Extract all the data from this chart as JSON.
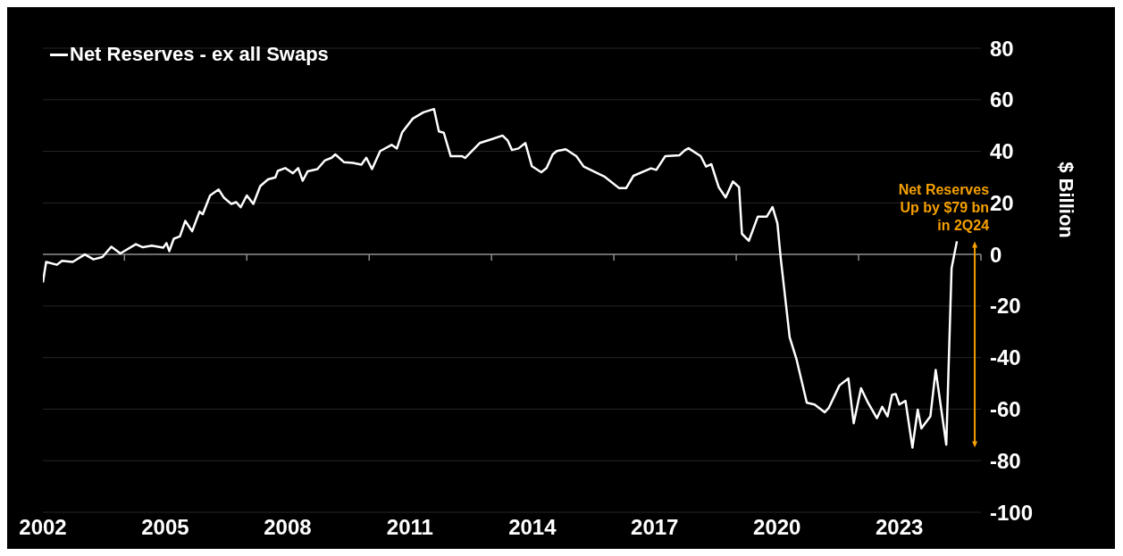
{
  "chart_data": {
    "type": "line",
    "ylabel": "$ Billion",
    "x": [
      2002.0,
      2002.08,
      2002.34,
      2002.47,
      2002.73,
      2003.03,
      2003.24,
      2003.46,
      2003.68,
      2003.9,
      2004.28,
      2004.45,
      2004.67,
      2004.95,
      2005.03,
      2005.1,
      2005.21,
      2005.36,
      2005.49,
      2005.66,
      2005.84,
      2005.92,
      2006.1,
      2006.31,
      2006.44,
      2006.62,
      2006.74,
      2006.85,
      2007.0,
      2007.16,
      2007.33,
      2007.52,
      2007.7,
      2007.76,
      2007.94,
      2008.13,
      2008.26,
      2008.37,
      2008.49,
      2008.73,
      2008.91,
      2009.08,
      2009.17,
      2009.38,
      2009.6,
      2009.81,
      2009.93,
      2010.07,
      2010.27,
      2010.55,
      2010.68,
      2010.81,
      2011.07,
      2011.33,
      2011.59,
      2011.71,
      2011.83,
      2012.0,
      2012.28,
      2012.35,
      2012.71,
      2013.02,
      2013.27,
      2013.4,
      2013.5,
      2013.66,
      2013.83,
      2013.99,
      2014.22,
      2014.35,
      2014.5,
      2014.6,
      2014.82,
      2015.08,
      2015.26,
      2015.78,
      2016.13,
      2016.3,
      2016.48,
      2016.91,
      2017.04,
      2017.26,
      2017.61,
      2017.74,
      2017.83,
      2018.13,
      2018.26,
      2018.39,
      2018.57,
      2018.74,
      2018.92,
      2019.07,
      2019.14,
      2019.31,
      2019.53,
      2019.75,
      2019.89,
      2020.01,
      2020.09,
      2020.31,
      2020.48,
      2020.73,
      2020.92,
      2021.17,
      2021.27,
      2021.53,
      2021.75,
      2021.88,
      2022.06,
      2022.23,
      2022.45,
      2022.58,
      2022.71,
      2022.82,
      2022.91,
      2023.0,
      2023.15,
      2023.32,
      2023.45,
      2023.54,
      2023.76,
      2023.89,
      2024.15,
      2024.28,
      2024.41
    ],
    "series": [
      {
        "name": "Net Reserves - ex all Swaps",
        "color": "#ffffff",
        "values": [
          -10.9,
          -2.9,
          -4,
          -2.5,
          -2.9,
          0,
          -1.9,
          -1,
          3,
          0.4,
          4,
          2.8,
          3.4,
          2.6,
          4.4,
          1.3,
          6.1,
          7,
          13,
          9,
          16.6,
          15.6,
          22.9,
          25.2,
          22,
          19.6,
          20.3,
          18.3,
          22.9,
          19.6,
          26.5,
          29.1,
          29.9,
          32.4,
          33.5,
          31.5,
          33.5,
          28.6,
          32.2,
          33.1,
          36.4,
          37.5,
          38.8,
          35.8,
          35.5,
          34.8,
          37.5,
          33.1,
          40.1,
          42.5,
          41.1,
          47.4,
          52.7,
          55.1,
          56.4,
          47.7,
          47.2,
          38.1,
          38.1,
          37.4,
          43.2,
          44.8,
          46.1,
          44.1,
          40.5,
          41.1,
          43.2,
          34.2,
          31.9,
          33.5,
          38.8,
          40.1,
          40.8,
          38.1,
          34.1,
          30.1,
          25.7,
          25.7,
          30.5,
          33.4,
          32.8,
          38.1,
          38.5,
          40.4,
          41.2,
          38.1,
          34.1,
          35,
          26.1,
          22.1,
          28.3,
          26.1,
          8,
          5.3,
          14.7,
          14.7,
          18.4,
          12,
          -1.3,
          -32.1,
          -40.8,
          -57.5,
          -58.2,
          -61.2,
          -59.5,
          -50.8,
          -48.1,
          -65.5,
          -51.9,
          -57.5,
          -63.5,
          -59.1,
          -62.8,
          -54.5,
          -54.1,
          -58.2,
          -56.8,
          -74.9,
          -60.2,
          -67.5,
          -62.8,
          -44.8,
          -73.8,
          -5.3,
          5.1
        ]
      }
    ],
    "xlim": [
      2002,
      2025
    ],
    "xticks": [
      2002,
      2005,
      2008,
      2011,
      2014,
      2017,
      2020,
      2023
    ],
    "ylim": [
      -100,
      80
    ],
    "yticks": [
      -100,
      -80,
      -60,
      -40,
      -20,
      0,
      20,
      40,
      60,
      80
    ],
    "grid": "y",
    "legend": "top left",
    "marker": "none",
    "line_style": "solid",
    "ref_lines": [
      {
        "axis": "y",
        "value": 0,
        "color": "#8c8c8c"
      }
    ],
    "annotations": [
      "Net Reserves\nUp by $79 bn\nin 2Q24"
    ]
  }
}
